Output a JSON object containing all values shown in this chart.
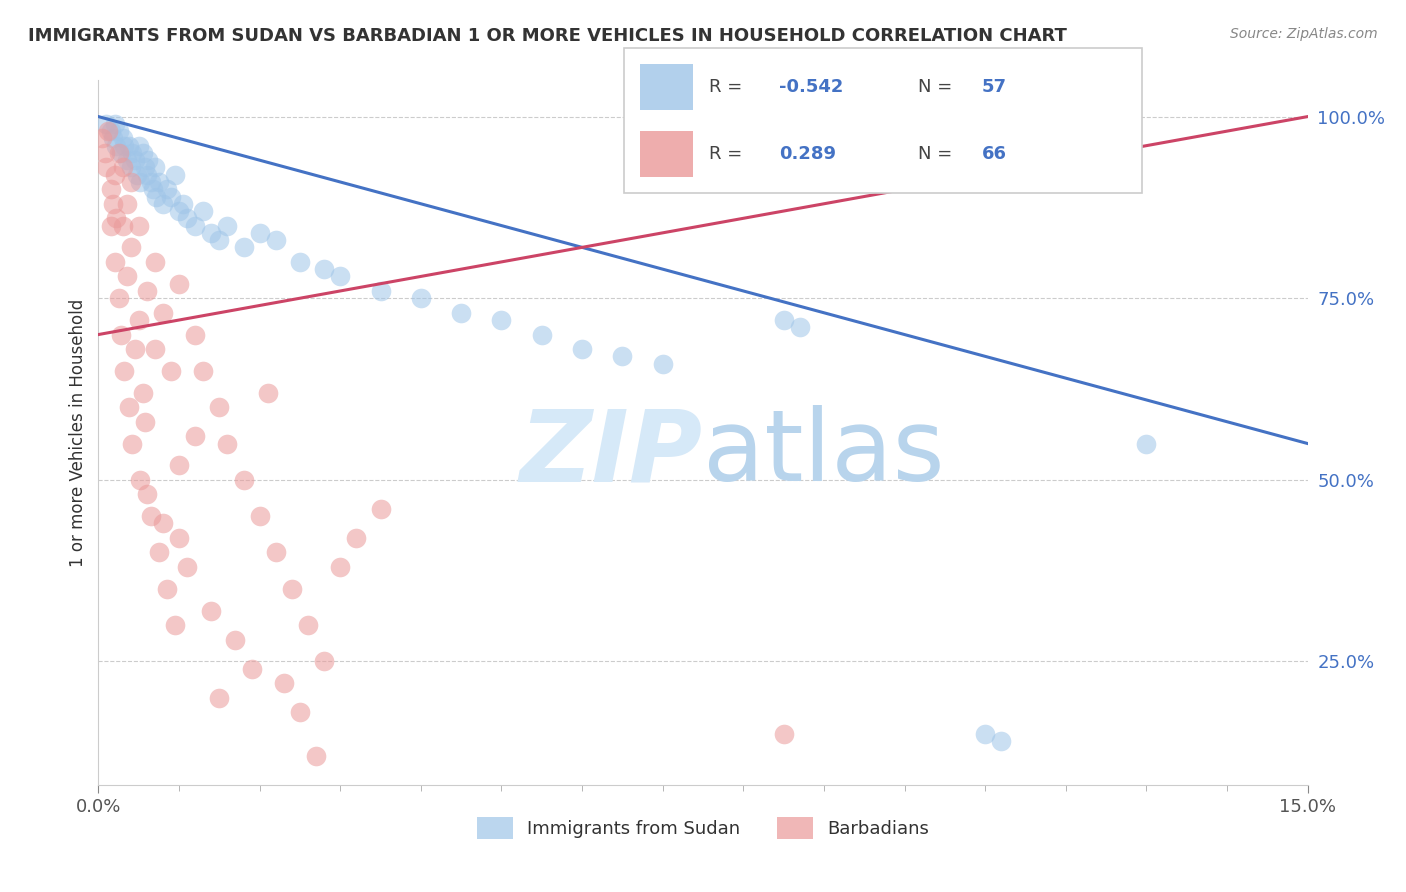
{
  "title": "IMMIGRANTS FROM SUDAN VS BARBADIAN 1 OR MORE VEHICLES IN HOUSEHOLD CORRELATION CHART",
  "source_text": "Source: ZipAtlas.com",
  "ylabel": "1 or more Vehicles in Household",
  "x_min": 0.0,
  "x_max": 15.0,
  "y_min": 8.0,
  "y_max": 105.0,
  "legend_labels": [
    "Immigrants from Sudan",
    "Barbadians"
  ],
  "R_sudan": -0.542,
  "N_sudan": 57,
  "R_barbadian": 0.289,
  "N_barbadian": 66,
  "color_sudan": "#9fc5e8",
  "color_barbadian": "#ea9999",
  "line_color_sudan": "#4472c4",
  "line_color_barbadian": "#cc4466",
  "watermark_zip": "ZIP",
  "watermark_atlas": "atlas",
  "watermark_color": "#d6e9f8",
  "sudan_line_x0": 0.0,
  "sudan_line_y0": 100.0,
  "sudan_line_x1": 15.0,
  "sudan_line_y1": 55.0,
  "barb_line_x0": 0.0,
  "barb_line_y0": 70.0,
  "barb_line_x1": 15.0,
  "barb_line_y1": 100.0,
  "sudan_x": [
    0.1,
    0.15,
    0.18,
    0.2,
    0.22,
    0.25,
    0.28,
    0.3,
    0.32,
    0.35,
    0.38,
    0.4,
    0.42,
    0.45,
    0.48,
    0.5,
    0.52,
    0.55,
    0.58,
    0.6,
    0.62,
    0.65,
    0.68,
    0.7,
    0.72,
    0.75,
    0.8,
    0.85,
    0.9,
    0.95,
    1.0,
    1.05,
    1.1,
    1.2,
    1.3,
    1.4,
    1.5,
    1.6,
    1.8,
    2.0,
    2.2,
    2.5,
    2.8,
    3.0,
    3.5,
    4.0,
    4.5,
    5.0,
    5.5,
    6.0,
    6.5,
    7.0,
    8.5,
    8.7,
    11.0,
    11.2,
    13.0
  ],
  "sudan_y": [
    99,
    98,
    97,
    99,
    96,
    98,
    95,
    97,
    96,
    94,
    96,
    93,
    95,
    94,
    92,
    96,
    91,
    95,
    93,
    92,
    94,
    91,
    90,
    93,
    89,
    91,
    88,
    90,
    89,
    92,
    87,
    88,
    86,
    85,
    87,
    84,
    83,
    85,
    82,
    84,
    83,
    80,
    79,
    78,
    76,
    75,
    73,
    72,
    70,
    68,
    67,
    66,
    72,
    71,
    15,
    14,
    55
  ],
  "barbadian_x": [
    0.05,
    0.08,
    0.1,
    0.12,
    0.15,
    0.15,
    0.18,
    0.2,
    0.2,
    0.22,
    0.25,
    0.25,
    0.28,
    0.3,
    0.3,
    0.32,
    0.35,
    0.35,
    0.38,
    0.4,
    0.4,
    0.42,
    0.45,
    0.5,
    0.5,
    0.52,
    0.55,
    0.58,
    0.6,
    0.65,
    0.7,
    0.7,
    0.75,
    0.8,
    0.85,
    0.9,
    0.95,
    1.0,
    1.0,
    1.1,
    1.2,
    1.3,
    1.4,
    1.5,
    1.6,
    1.7,
    1.8,
    1.9,
    2.0,
    2.1,
    2.2,
    2.3,
    2.4,
    2.5,
    2.6,
    2.7,
    2.8,
    3.0,
    3.2,
    3.5,
    0.6,
    0.8,
    1.0,
    1.2,
    1.5,
    8.5
  ],
  "barbadian_y": [
    97,
    95,
    93,
    98,
    90,
    85,
    88,
    92,
    80,
    86,
    75,
    95,
    70,
    85,
    93,
    65,
    78,
    88,
    60,
    82,
    91,
    55,
    68,
    72,
    85,
    50,
    62,
    58,
    76,
    45,
    68,
    80,
    40,
    73,
    35,
    65,
    30,
    77,
    42,
    38,
    70,
    65,
    32,
    60,
    55,
    28,
    50,
    24,
    45,
    62,
    40,
    22,
    35,
    18,
    30,
    12,
    25,
    38,
    42,
    46,
    48,
    44,
    52,
    56,
    20,
    15
  ]
}
